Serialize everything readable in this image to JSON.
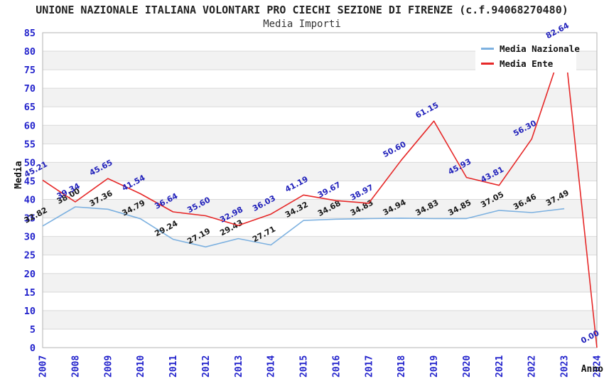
{
  "header": {
    "title": "UNIONE NAZIONALE ITALIANA VOLONTARI PRO CIECHI SEZIONE DI FIRENZE (c.f.94068270480)",
    "subtitle": "Media Importi"
  },
  "chart_data": {
    "type": "line",
    "title": "UNIONE NAZIONALE ITALIANA VOLONTARI PRO CIECHI SEZIONE DI FIRENZE (c.f.94068270480)",
    "subtitle": "Media Importi",
    "xlabel": "Anno",
    "ylabel": "Media",
    "ylim": [
      0,
      85
    ],
    "ytick_step": 5,
    "grid": true,
    "alternating_bands": true,
    "legend_position": "top-right",
    "categories": [
      "2007",
      "2008",
      "2009",
      "2010",
      "2011",
      "2012",
      "2013",
      "2014",
      "2015",
      "2016",
      "2017",
      "2018",
      "2019",
      "2020",
      "2021",
      "2022",
      "2023",
      "2024"
    ],
    "series": [
      {
        "name": "Media Nazionale",
        "color": "#7db1e0",
        "label_color": "#1a1a1a",
        "values": [
          32.82,
          38.0,
          37.36,
          34.79,
          29.24,
          27.19,
          29.43,
          27.71,
          34.32,
          34.68,
          34.83,
          34.94,
          34.83,
          34.85,
          37.05,
          36.46,
          37.49,
          null
        ]
      },
      {
        "name": "Media Ente",
        "color": "#e62828",
        "label_color": "#2222bb",
        "values": [
          45.21,
          39.34,
          45.65,
          41.54,
          36.64,
          35.6,
          32.98,
          36.03,
          41.19,
          39.67,
          38.97,
          50.6,
          61.15,
          45.93,
          43.81,
          56.3,
          82.64,
          0.0
        ]
      }
    ],
    "colors": {
      "tick_label": "#2222cc",
      "axis_title": "#111111",
      "band_gray": "#f2f2f2",
      "gridline": "#d9d9d9",
      "plot_border": "#b3b3b3",
      "background": "#ffffff"
    }
  }
}
